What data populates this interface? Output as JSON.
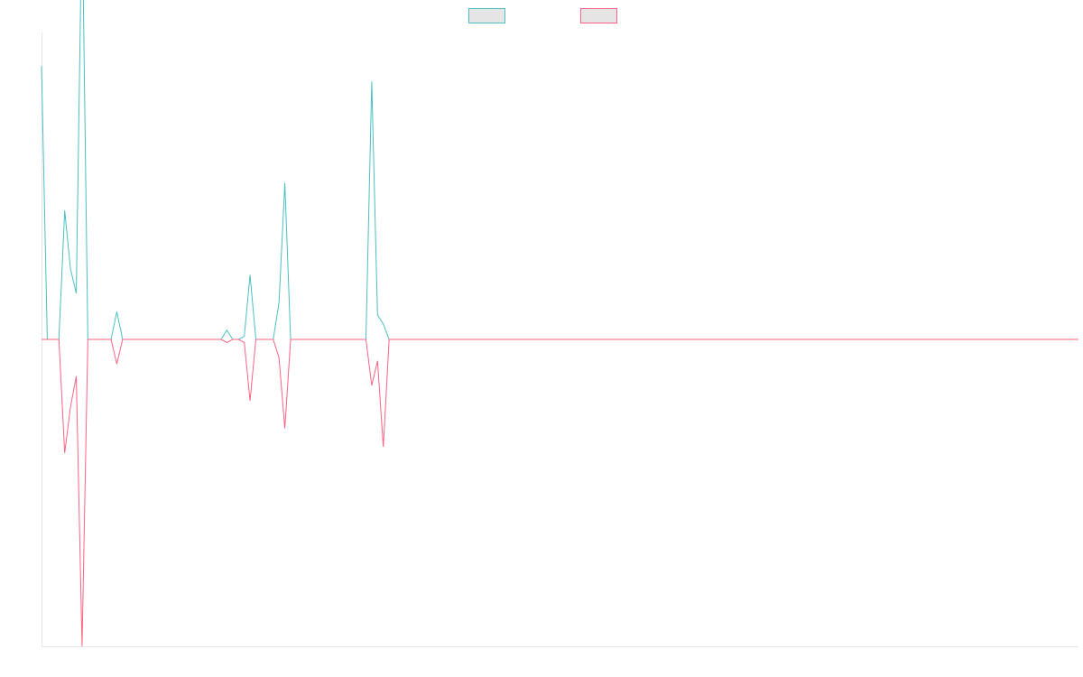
{
  "chart_data": {
    "type": "line",
    "legend": {
      "position": "top-center",
      "entries": [
        {
          "name": "",
          "color": "#4bc0c0",
          "fill": "#e5e5e5"
        },
        {
          "name": "",
          "color": "#ff6384",
          "fill": "#e5e5e5"
        }
      ]
    },
    "grid": false,
    "ylim": [
      -100,
      100
    ],
    "x": [
      0,
      1,
      2,
      3,
      4,
      5,
      6,
      7,
      8,
      9,
      10,
      11,
      12,
      13,
      14,
      15,
      16,
      17,
      18,
      19,
      20,
      21,
      22,
      23,
      24,
      25,
      26,
      27,
      28,
      29,
      30,
      31,
      32,
      33,
      34,
      35,
      36,
      37,
      38,
      39,
      40,
      41,
      42,
      43,
      44,
      45,
      46,
      47,
      48,
      49,
      50,
      51,
      52,
      53,
      54,
      55,
      56,
      57,
      58,
      59,
      60,
      61,
      62,
      63,
      64,
      65,
      66,
      67,
      68,
      69,
      70,
      71,
      72,
      73,
      74,
      75,
      76,
      77,
      78,
      79,
      80,
      81,
      82,
      83,
      84,
      85,
      86,
      87,
      88,
      89,
      90,
      91,
      92,
      93,
      94,
      95,
      96,
      97,
      98,
      99,
      100,
      101,
      102,
      103,
      104,
      105,
      106,
      107,
      108,
      109,
      110,
      111,
      112,
      113,
      114,
      115,
      116,
      117,
      118,
      119,
      120,
      121,
      122,
      123,
      124,
      125,
      126,
      127,
      128,
      129,
      130,
      131,
      132,
      133,
      134,
      135,
      136,
      137,
      138,
      139,
      140,
      141,
      142,
      143,
      144,
      145,
      146,
      147,
      148,
      149,
      150,
      151,
      152,
      153,
      154,
      155,
      156,
      157,
      158,
      159,
      160,
      161,
      162,
      163,
      164,
      165,
      166,
      167,
      168,
      169,
      170,
      171,
      172,
      173,
      174,
      175,
      176,
      177,
      178,
      179
    ],
    "series": [
      {
        "name": "",
        "color": "#4bc0c0",
        "values": [
          89,
          0,
          0,
          0,
          42,
          23,
          15,
          142,
          0,
          0,
          0,
          0,
          0,
          9,
          0,
          0,
          0,
          0,
          0,
          0,
          0,
          0,
          0,
          0,
          0,
          0,
          0,
          0,
          0,
          0,
          0,
          0,
          3,
          0,
          0,
          1,
          21,
          0,
          0,
          0,
          0,
          12,
          51,
          0,
          0,
          0,
          0,
          0,
          0,
          0,
          0,
          0,
          0,
          0,
          0,
          0,
          0,
          84,
          8,
          5,
          0,
          0,
          0,
          0,
          0,
          0,
          0,
          0,
          0,
          0,
          0,
          0,
          0,
          0,
          0,
          0,
          0,
          0,
          0,
          0,
          0,
          0,
          0,
          0,
          0,
          0,
          0,
          0,
          0,
          0,
          0,
          0,
          0,
          0,
          0,
          0,
          0,
          0,
          0,
          0,
          0,
          0,
          0,
          0,
          0,
          0,
          0,
          0,
          0,
          0,
          0,
          0,
          0,
          0,
          0,
          0,
          0,
          0,
          0,
          0,
          0,
          0,
          0,
          0,
          0,
          0,
          0,
          0,
          0,
          0,
          0,
          0,
          0,
          0,
          0,
          0,
          0,
          0,
          0,
          0,
          0,
          0,
          0,
          0,
          0,
          0,
          0,
          0,
          0,
          0,
          0,
          0,
          0,
          0,
          0,
          0,
          0,
          0,
          0,
          0,
          0,
          0,
          0,
          0,
          0,
          0,
          0,
          0,
          0,
          0,
          0,
          0,
          0,
          0,
          0,
          0,
          0,
          0,
          0,
          0
        ]
      },
      {
        "name": "",
        "color": "#ff6384",
        "values": [
          0,
          0,
          0,
          0,
          -37,
          -22,
          -12,
          -100,
          0,
          0,
          0,
          0,
          0,
          -8,
          0,
          0,
          0,
          0,
          0,
          0,
          0,
          0,
          0,
          0,
          0,
          0,
          0,
          0,
          0,
          0,
          0,
          0,
          -1,
          0,
          0,
          -1,
          -20,
          0,
          0,
          0,
          0,
          -6,
          -29,
          0,
          0,
          0,
          0,
          0,
          0,
          0,
          0,
          0,
          0,
          0,
          0,
          0,
          0,
          -15,
          -7,
          -35,
          0,
          0,
          0,
          0,
          0,
          0,
          0,
          0,
          0,
          0,
          0,
          0,
          0,
          0,
          0,
          0,
          0,
          0,
          0,
          0,
          0,
          0,
          0,
          0,
          0,
          0,
          0,
          0,
          0,
          0,
          0,
          0,
          0,
          0,
          0,
          0,
          0,
          0,
          0,
          0,
          0,
          0,
          0,
          0,
          0,
          0,
          0,
          0,
          0,
          0,
          0,
          0,
          0,
          0,
          0,
          0,
          0,
          0,
          0,
          0,
          0,
          0,
          0,
          0,
          0,
          0,
          0,
          0,
          0,
          0,
          0,
          0,
          0,
          0,
          0,
          0,
          0,
          0,
          0,
          0,
          0,
          0,
          0,
          0,
          0,
          0,
          0,
          0,
          0,
          0,
          0,
          0,
          0,
          0,
          0,
          0,
          0,
          0,
          0,
          0,
          0,
          0,
          0,
          0,
          0,
          0,
          0,
          0,
          0,
          0,
          0,
          0,
          0,
          0,
          0,
          0,
          0,
          0,
          0,
          0
        ]
      }
    ]
  }
}
